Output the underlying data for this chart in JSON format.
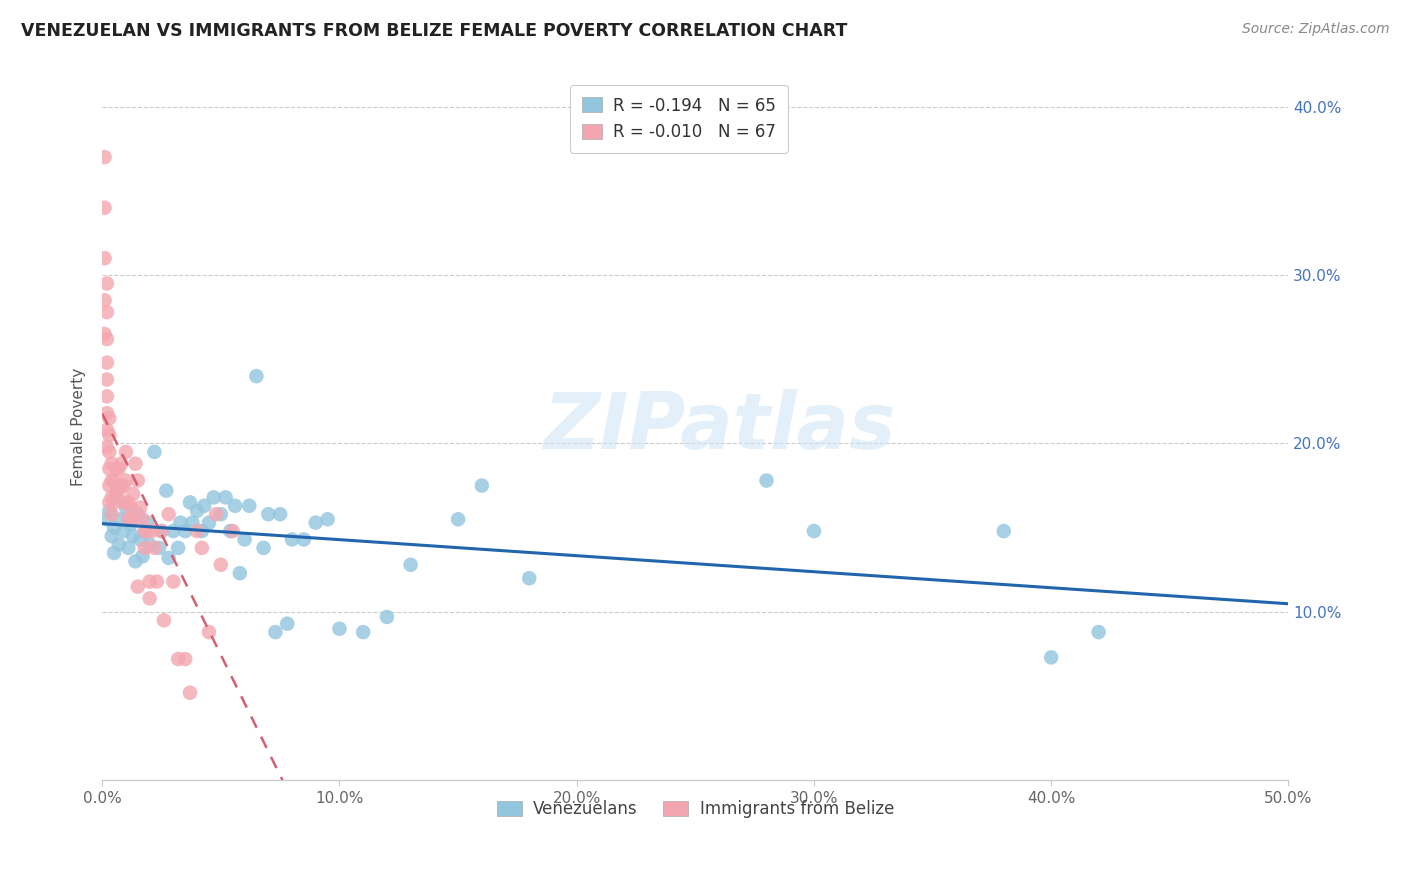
{
  "title": "VENEZUELAN VS IMMIGRANTS FROM BELIZE FEMALE POVERTY CORRELATION CHART",
  "source": "Source: ZipAtlas.com",
  "ylabel": "Female Poverty",
  "xlim": [
    0.0,
    0.5
  ],
  "ylim": [
    0.0,
    0.42
  ],
  "xticks": [
    0.0,
    0.1,
    0.2,
    0.3,
    0.4,
    0.5
  ],
  "xticklabels": [
    "0.0%",
    "10.0%",
    "20.0%",
    "30.0%",
    "40.0%",
    "50.0%"
  ],
  "yticks_right": [
    0.1,
    0.2,
    0.3,
    0.4
  ],
  "yticklabels_right": [
    "10.0%",
    "20.0%",
    "30.0%",
    "40.0%"
  ],
  "venezuelan_R": -0.194,
  "venezuelan_N": 65,
  "belize_R": -0.01,
  "belize_N": 67,
  "venezuelan_color": "#92c5de",
  "belize_color": "#f4a6b0",
  "venezuelan_line_color": "#2166ac",
  "belize_line_color": "#d45f70",
  "watermark_text": "ZIPatlas",
  "venezuelan_scatter_x": [
    0.002,
    0.003,
    0.004,
    0.005,
    0.005,
    0.006,
    0.007,
    0.008,
    0.009,
    0.01,
    0.011,
    0.012,
    0.013,
    0.014,
    0.015,
    0.016,
    0.017,
    0.018,
    0.019,
    0.02,
    0.022,
    0.024,
    0.025,
    0.027,
    0.028,
    0.03,
    0.032,
    0.033,
    0.035,
    0.037,
    0.038,
    0.04,
    0.042,
    0.043,
    0.045,
    0.047,
    0.05,
    0.052,
    0.054,
    0.056,
    0.058,
    0.06,
    0.062,
    0.065,
    0.068,
    0.07,
    0.073,
    0.075,
    0.078,
    0.08,
    0.085,
    0.09,
    0.095,
    0.1,
    0.11,
    0.12,
    0.13,
    0.15,
    0.16,
    0.18,
    0.28,
    0.3,
    0.38,
    0.4,
    0.42
  ],
  "venezuelan_scatter_y": [
    0.155,
    0.16,
    0.145,
    0.135,
    0.15,
    0.168,
    0.14,
    0.155,
    0.148,
    0.162,
    0.138,
    0.152,
    0.145,
    0.13,
    0.158,
    0.143,
    0.133,
    0.148,
    0.153,
    0.14,
    0.195,
    0.138,
    0.148,
    0.172,
    0.132,
    0.148,
    0.138,
    0.153,
    0.148,
    0.165,
    0.153,
    0.16,
    0.148,
    0.163,
    0.153,
    0.168,
    0.158,
    0.168,
    0.148,
    0.163,
    0.123,
    0.143,
    0.163,
    0.24,
    0.138,
    0.158,
    0.088,
    0.158,
    0.093,
    0.143,
    0.143,
    0.153,
    0.155,
    0.09,
    0.088,
    0.097,
    0.128,
    0.155,
    0.175,
    0.12,
    0.178,
    0.148,
    0.148,
    0.073,
    0.088
  ],
  "belize_scatter_x": [
    0.001,
    0.001,
    0.001,
    0.001,
    0.001,
    0.002,
    0.002,
    0.002,
    0.002,
    0.002,
    0.002,
    0.002,
    0.002,
    0.002,
    0.003,
    0.003,
    0.003,
    0.003,
    0.003,
    0.003,
    0.004,
    0.004,
    0.004,
    0.004,
    0.005,
    0.005,
    0.006,
    0.006,
    0.007,
    0.007,
    0.008,
    0.008,
    0.009,
    0.009,
    0.01,
    0.01,
    0.011,
    0.011,
    0.012,
    0.013,
    0.013,
    0.014,
    0.015,
    0.015,
    0.016,
    0.017,
    0.018,
    0.018,
    0.019,
    0.02,
    0.02,
    0.021,
    0.022,
    0.023,
    0.025,
    0.026,
    0.028,
    0.03,
    0.032,
    0.035,
    0.037,
    0.04,
    0.042,
    0.045,
    0.048,
    0.05,
    0.055
  ],
  "belize_scatter_y": [
    0.37,
    0.34,
    0.31,
    0.285,
    0.265,
    0.295,
    0.278,
    0.262,
    0.248,
    0.238,
    0.228,
    0.218,
    0.208,
    0.198,
    0.215,
    0.205,
    0.195,
    0.185,
    0.175,
    0.165,
    0.188,
    0.178,
    0.168,
    0.158,
    0.178,
    0.165,
    0.185,
    0.172,
    0.185,
    0.172,
    0.188,
    0.175,
    0.175,
    0.165,
    0.195,
    0.178,
    0.165,
    0.155,
    0.162,
    0.155,
    0.17,
    0.188,
    0.178,
    0.115,
    0.162,
    0.155,
    0.148,
    0.138,
    0.148,
    0.118,
    0.108,
    0.148,
    0.138,
    0.118,
    0.148,
    0.095,
    0.158,
    0.118,
    0.072,
    0.072,
    0.052,
    0.148,
    0.138,
    0.088,
    0.158,
    0.128,
    0.148
  ]
}
